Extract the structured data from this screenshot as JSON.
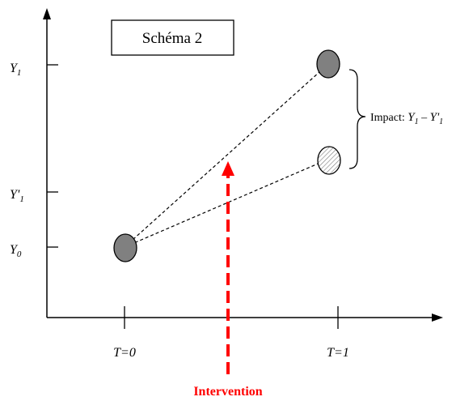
{
  "title": "Schéma 2",
  "y_axis": {
    "labels": [
      {
        "main": "Y",
        "sub": "1",
        "prime": ""
      },
      {
        "main": "Y",
        "sub": "1",
        "prime": "'"
      },
      {
        "main": "Y",
        "sub": "0",
        "prime": ""
      }
    ]
  },
  "x_axis": {
    "labels": [
      "T=0",
      "T=1"
    ]
  },
  "impact": {
    "prefix": "Impact: ",
    "formula_a": "Y",
    "sub_a": "1",
    "minus": " – ",
    "formula_b": "Y'",
    "sub_b": "1"
  },
  "intervention": {
    "label": "Intervention",
    "color": "#ff0000"
  },
  "colors": {
    "node_fill_dark": "#808080",
    "node_fill_hatched": "#d9d9d9",
    "line": "#000000"
  }
}
